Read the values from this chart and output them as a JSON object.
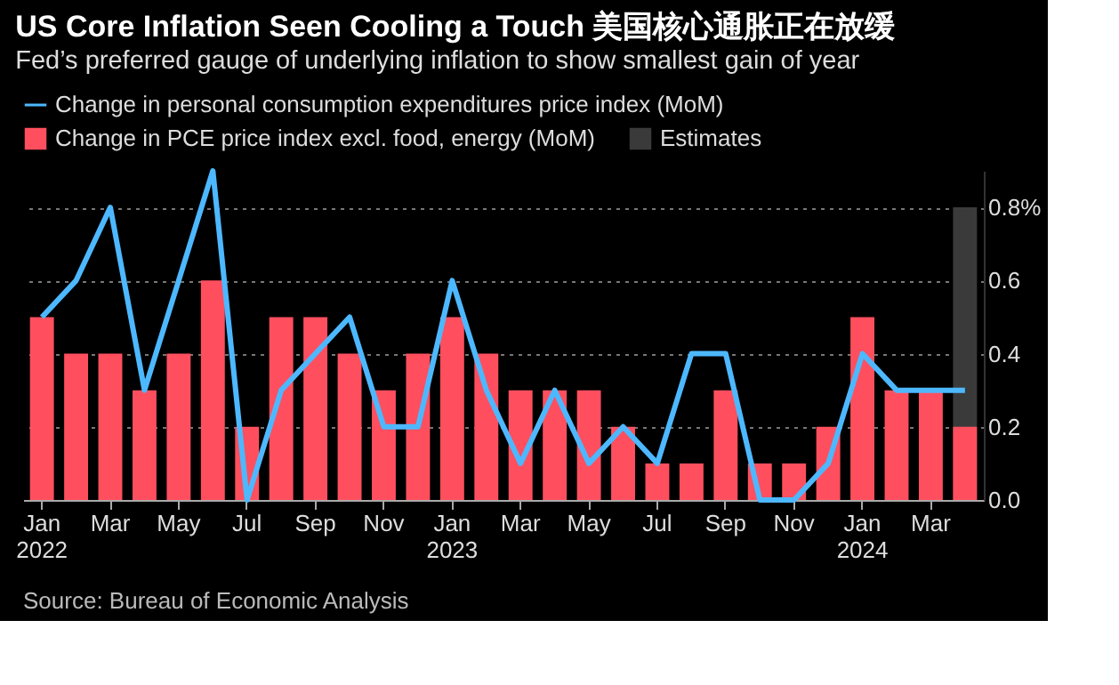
{
  "chart_data": {
    "type": "bar",
    "title": "US Core Inflation Seen Cooling a Touch 美国核心通胀正在放缓",
    "subtitle": "Fed’s preferred gauge of underlying inflation to show smallest gain of year",
    "categories": [
      "Jan\n2022",
      null,
      "Mar",
      null,
      "May",
      null,
      "Jul",
      null,
      "Sep",
      null,
      "Nov",
      null,
      "Jan\n2023",
      null,
      "Mar",
      null,
      "May",
      null,
      "Jul",
      null,
      "Sep",
      null,
      "Nov",
      null,
      "Jan\n2024",
      null,
      "Mar",
      null
    ],
    "series": [
      {
        "name": "Change in personal consumption expenditures price index (MoM)",
        "type": "line",
        "color": "#4db8ff",
        "values": [
          0.5,
          0.6,
          0.8,
          0.3,
          0.6,
          0.9,
          0.0,
          0.3,
          0.4,
          0.5,
          0.2,
          0.2,
          0.6,
          0.3,
          0.1,
          0.3,
          0.1,
          0.2,
          0.1,
          0.4,
          0.4,
          0.0,
          0.0,
          0.1,
          0.4,
          0.3,
          0.3,
          0.3
        ]
      },
      {
        "name": "Change in PCE price index excl. food, energy (MoM)",
        "color": "#ff4f5e",
        "values": [
          0.5,
          0.4,
          0.4,
          0.3,
          0.4,
          0.6,
          0.2,
          0.5,
          0.5,
          0.4,
          0.3,
          0.4,
          0.5,
          0.4,
          0.3,
          0.3,
          0.3,
          0.2,
          0.1,
          0.1,
          0.3,
          0.1,
          0.1,
          0.2,
          0.5,
          0.3,
          0.3,
          0.2
        ]
      },
      {
        "name": "Estimates",
        "color": "#3a3a3a",
        "values": [
          null,
          null,
          null,
          null,
          null,
          null,
          null,
          null,
          null,
          null,
          null,
          null,
          null,
          null,
          null,
          null,
          null,
          null,
          null,
          null,
          null,
          null,
          null,
          null,
          null,
          null,
          null,
          0.8
        ]
      }
    ],
    "ylim": [
      0,
      0.9
    ],
    "yticks": [
      {
        "value": 0,
        "label": "0.0"
      },
      0.2,
      0.4,
      0.6,
      {
        "value": 0.8,
        "label": "0.8%"
      }
    ],
    "grid": "y",
    "legend": "top left",
    "annotations": [
      "Source: Bureau of Economic Analysis"
    ]
  }
}
